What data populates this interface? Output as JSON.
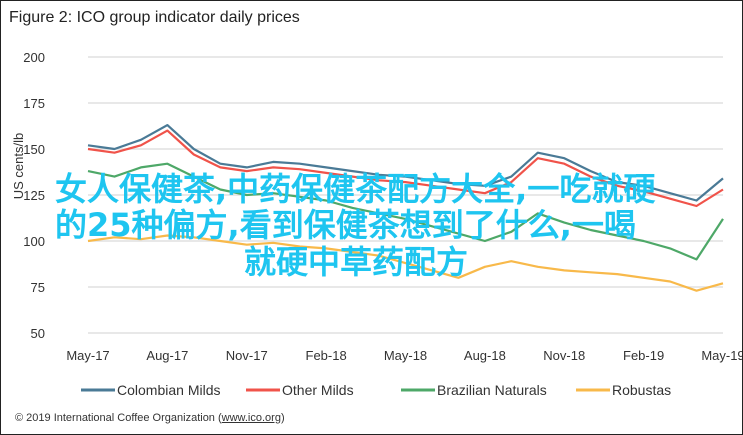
{
  "title": "Figure 2: ICO group indicator daily prices",
  "overlay": {
    "line1": "女人保健茶,中药保健茶配方大全,一吃就硬",
    "line2": "的25种偏方,看到保健茶想到了什么,一喝",
    "line3": "就硬中草药配方"
  },
  "footer": {
    "copyright": "© 2019 International Coffee Organization (",
    "link": "www.ico.org",
    ")": ")"
  },
  "chart_data": {
    "type": "line",
    "title": "Figure 2: ICO group indicator daily prices",
    "ylabel": "US cents/lb",
    "xlabel": "",
    "ylim": [
      50,
      200
    ],
    "yticks": [
      "50",
      "75",
      "100",
      "125",
      "150",
      "175",
      "200"
    ],
    "xticks": [
      "May-17",
      "Aug-17",
      "Nov-17",
      "Feb-18",
      "May-18",
      "Aug-18",
      "Nov-18",
      "Feb-19",
      "May-19"
    ],
    "grid": true,
    "legend": "bottom",
    "x": [
      "May-17",
      "Jun-17",
      "Jul-17",
      "Aug-17",
      "Sep-17",
      "Oct-17",
      "Nov-17",
      "Dec-17",
      "Jan-18",
      "Feb-18",
      "Mar-18",
      "Apr-18",
      "May-18",
      "Jun-18",
      "Jul-18",
      "Aug-18",
      "Sep-18",
      "Oct-18",
      "Nov-18",
      "Dec-18",
      "Jan-19",
      "Feb-19",
      "Mar-19",
      "Apr-19",
      "May-19"
    ],
    "series": [
      {
        "name": "Colombian Milds",
        "color": "#4a7a96",
        "values": [
          152,
          150,
          155,
          163,
          150,
          142,
          140,
          143,
          142,
          140,
          138,
          136,
          135,
          133,
          131,
          130,
          135,
          148,
          145,
          138,
          132,
          130,
          126,
          122,
          134
        ]
      },
      {
        "name": "Other Milds",
        "color": "#f0534a",
        "values": [
          150,
          148,
          152,
          160,
          147,
          140,
          138,
          140,
          139,
          137,
          135,
          133,
          132,
          130,
          128,
          126,
          132,
          145,
          142,
          135,
          130,
          127,
          123,
          119,
          128
        ]
      },
      {
        "name": "Brazilian Naturals",
        "color": "#4ea868",
        "values": [
          138,
          135,
          140,
          142,
          135,
          128,
          125,
          126,
          124,
          122,
          118,
          115,
          112,
          108,
          104,
          100,
          105,
          115,
          110,
          106,
          103,
          100,
          96,
          90,
          112
        ]
      },
      {
        "name": "Robustas",
        "color": "#f8b94a",
        "values": [
          100,
          102,
          101,
          103,
          102,
          100,
          98,
          99,
          97,
          96,
          94,
          92,
          88,
          84,
          80,
          86,
          89,
          86,
          84,
          83,
          82,
          80,
          78,
          73,
          77
        ]
      }
    ]
  }
}
